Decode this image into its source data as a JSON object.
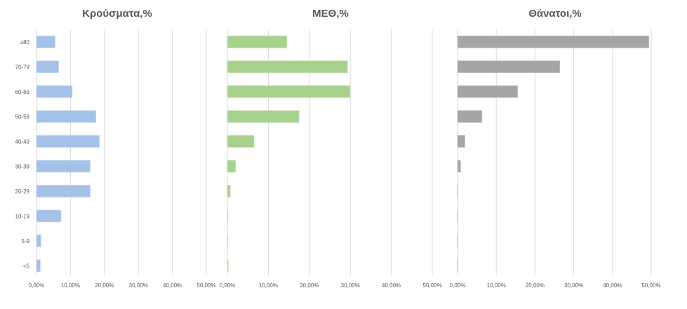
{
  "chart_data": [
    {
      "type": "bar",
      "orientation": "horizontal",
      "title": "Κρούσματα,%",
      "categories": [
        "≥80",
        "70-79",
        "60-69",
        "50-59",
        "40-49",
        "30-39",
        "20-29",
        "10-19",
        "5-9",
        "<5"
      ],
      "values": [
        5.5,
        6.5,
        10.5,
        17.5,
        18.5,
        15.8,
        15.8,
        7.2,
        1.3,
        1.1
      ],
      "xlim": [
        0,
        50
      ],
      "xticks": [
        "0,00%",
        "10,00%",
        "20,00%",
        "30,00%",
        "40,00%",
        "50,00%"
      ],
      "grid": true,
      "color": "#a4c2e8"
    },
    {
      "type": "bar",
      "orientation": "horizontal",
      "title": "ΜΕΘ,%",
      "categories": [
        "≥80",
        "70-79",
        "60-69",
        "50-59",
        "40-49",
        "30-39",
        "20-29",
        "10-19",
        "5-9",
        "<5"
      ],
      "values": [
        14.5,
        29.3,
        29.9,
        17.5,
        6.5,
        2.0,
        0.7,
        0.1,
        0.1,
        0.2
      ],
      "xlim": [
        0,
        50
      ],
      "xticks": [
        "0,00%",
        "10,00%",
        "20,00%",
        "30,00%",
        "40,00%",
        "50,00%"
      ],
      "grid": true,
      "color": "#a9d18e"
    },
    {
      "type": "bar",
      "orientation": "horizontal",
      "title": "Θάνατοι,%",
      "categories": [
        "≥80",
        "70-79",
        "60-69",
        "50-59",
        "40-49",
        "30-39",
        "20-29",
        "10-19",
        "5-9",
        "<5"
      ],
      "values": [
        49.4,
        26.4,
        15.5,
        6.3,
        1.9,
        0.8,
        0.1,
        0.0,
        0.0,
        0.0
      ],
      "xlim": [
        0,
        50
      ],
      "xticks": [
        "0,00%",
        "10,00%",
        "20,00%",
        "30,00%",
        "40,00%",
        "50,00%"
      ],
      "grid": true,
      "color": "#a5a5a5"
    }
  ]
}
